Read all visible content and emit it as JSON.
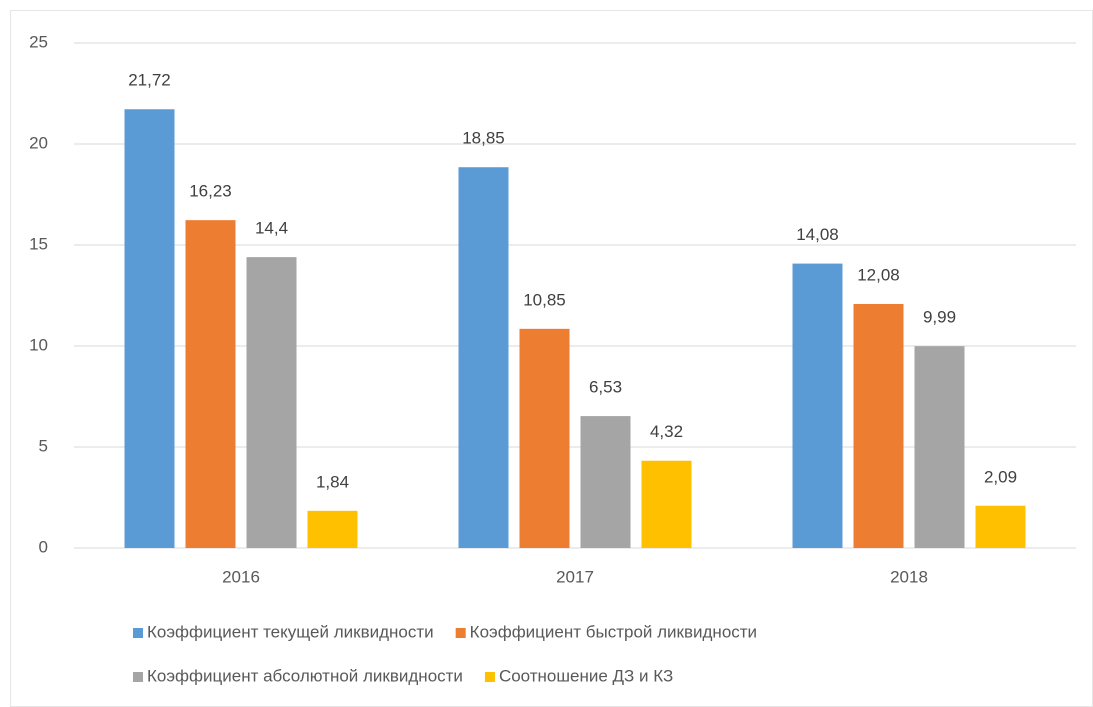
{
  "chart_data": {
    "type": "bar",
    "categories": [
      "2016",
      "2017",
      "2018"
    ],
    "series": [
      {
        "name": "Коэффициент текущей ликвидности",
        "color": "#5b9bd5",
        "values": [
          21.72,
          18.85,
          14.08
        ],
        "value_labels": [
          "21,72",
          "18,85",
          "14,08"
        ]
      },
      {
        "name": "Коэффициент быстрой ликвидности",
        "color": "#ed7d31",
        "values": [
          16.23,
          10.85,
          12.08
        ],
        "value_labels": [
          "16,23",
          "10,85",
          "12,08"
        ]
      },
      {
        "name": "Коэффициент абсолютной ликвидности",
        "color": "#a5a5a5",
        "values": [
          14.4,
          6.53,
          9.99
        ],
        "value_labels": [
          "14,4",
          "6,53",
          "9,99"
        ]
      },
      {
        "name": "Соотношение ДЗ и КЗ",
        "color": "#ffc000",
        "values": [
          1.84,
          4.32,
          2.09
        ],
        "value_labels": [
          "1,84",
          "4,32",
          "2,09"
        ]
      }
    ],
    "ylim": [
      0,
      25
    ],
    "yticks": [
      0,
      5,
      10,
      15,
      20,
      25
    ],
    "grid": true,
    "legend": "bottom"
  }
}
